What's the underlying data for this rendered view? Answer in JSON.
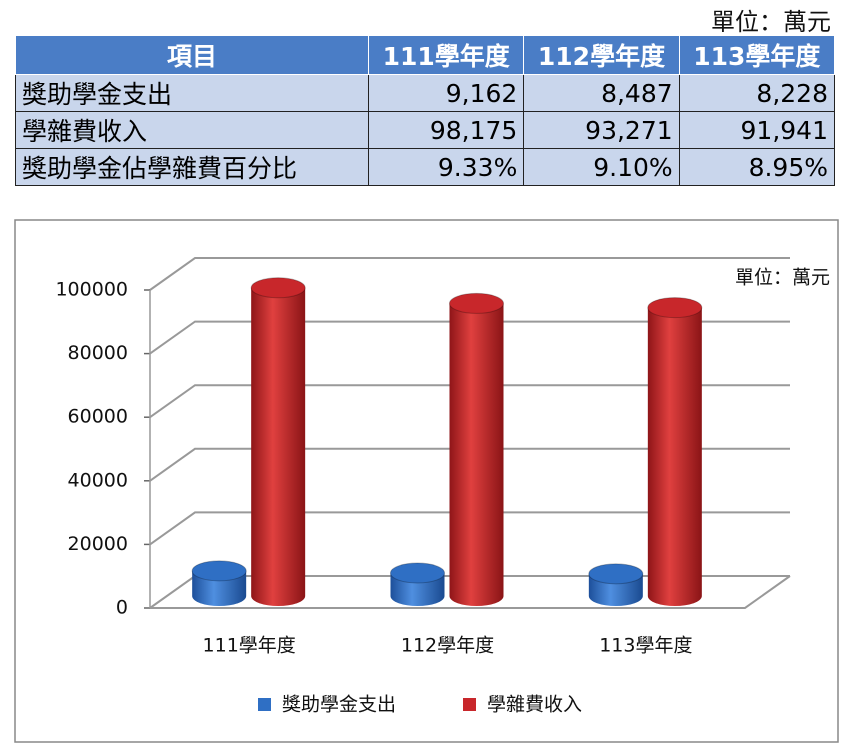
{
  "unit_note": "單位：萬元",
  "table": {
    "header": [
      "項目",
      "111學年度",
      "112學年度",
      "113學年度"
    ],
    "rows": [
      [
        "獎助學金支出",
        "9,162",
        "8,487",
        "8,228"
      ],
      [
        "學雜費收入",
        "98,175",
        "93,271",
        "91,941"
      ],
      [
        "獎助學金佔學雜費百分比",
        "9.33%",
        "9.10%",
        "8.95%"
      ]
    ]
  },
  "chart_data": {
    "type": "bar",
    "annotation": "單位：萬元",
    "categories": [
      "111學年度",
      "112學年度",
      "113學年度"
    ],
    "series": [
      {
        "name": "獎助學金支出",
        "color": "#2f6fc4",
        "values": [
          9162,
          8487,
          8228
        ]
      },
      {
        "name": "學雜費收入",
        "color": "#c8272b",
        "values": [
          98175,
          93271,
          91941
        ]
      }
    ],
    "ylim": [
      0,
      100000
    ],
    "yticks": [
      0,
      20000,
      40000,
      60000,
      80000,
      100000
    ],
    "grid": true,
    "legend": "bottom"
  }
}
